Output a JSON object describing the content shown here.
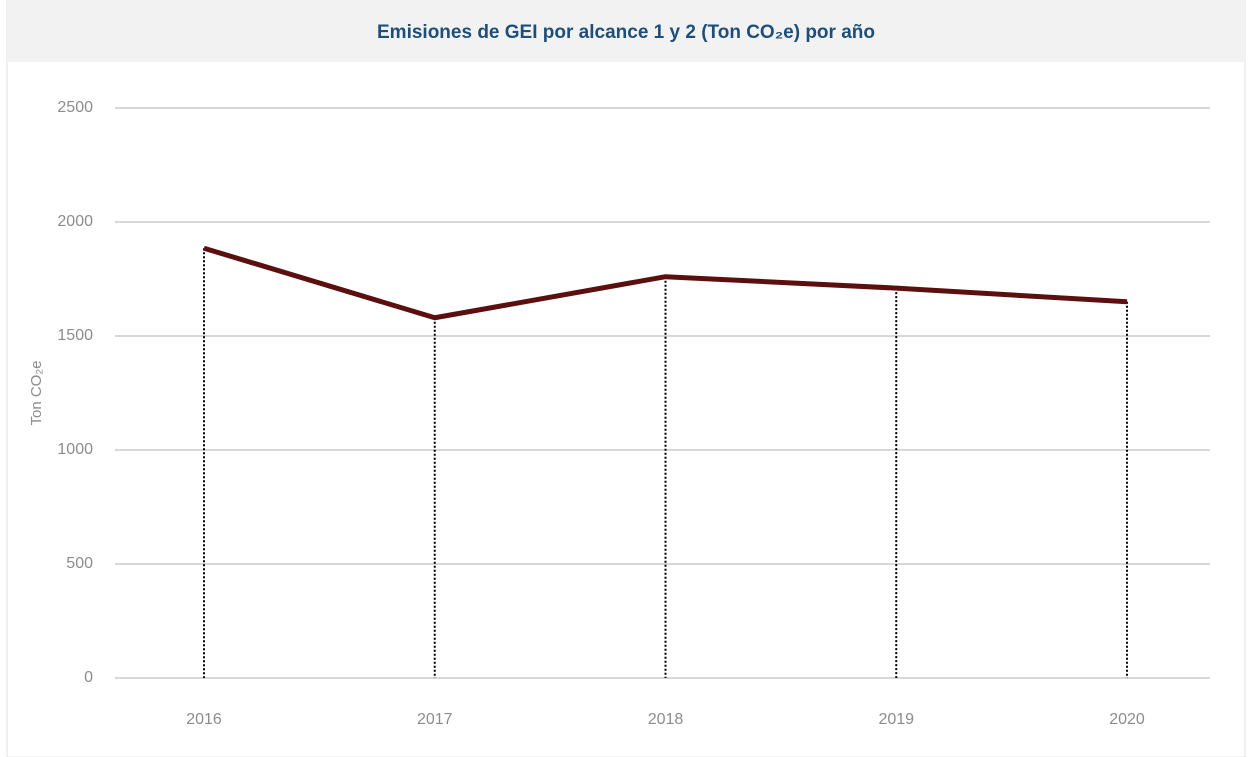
{
  "chart_data": {
    "type": "line",
    "title": "Emisiones de GEI por alcance 1 y 2 (Ton CO₂e) por año",
    "y_label": "Ton CO₂e",
    "categories": [
      "2016",
      "2017",
      "2018",
      "2019",
      "2020"
    ],
    "series": [
      {
        "name": "Ton CO₂e",
        "color": "#5c0f0f",
        "values": [
          1885,
          1580,
          1760,
          1710,
          1650
        ]
      }
    ],
    "ylim": [
      0,
      2500
    ],
    "yticks": [
      0,
      500,
      1000,
      1500,
      2000,
      2500
    ],
    "grid": true,
    "drop_lines": true
  }
}
